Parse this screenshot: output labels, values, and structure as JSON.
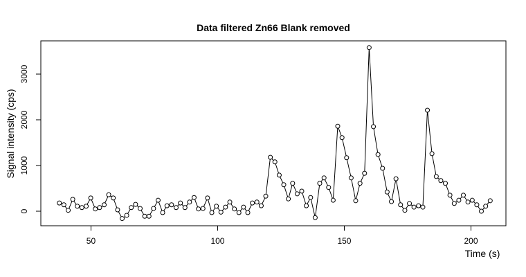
{
  "chart_data": {
    "type": "line",
    "title": "Data filtered Zn66 Blank removed",
    "xlabel": "Time (s)",
    "ylabel": "Signal intensity (cps)",
    "x": [
      37.5,
      39.3,
      41.0,
      42.8,
      44.6,
      46.4,
      48.1,
      49.9,
      51.7,
      53.4,
      55.2,
      57.0,
      58.8,
      60.5,
      62.3,
      64.1,
      65.9,
      67.6,
      69.4,
      71.2,
      72.9,
      74.7,
      76.5,
      78.3,
      80.0,
      81.8,
      83.6,
      85.3,
      87.1,
      88.9,
      90.7,
      92.4,
      94.2,
      96.0,
      97.7,
      99.5,
      101.3,
      103.1,
      104.8,
      106.6,
      108.4,
      110.2,
      111.9,
      113.7,
      115.5,
      117.2,
      119.0,
      120.8,
      122.6,
      124.3,
      126.1,
      127.9,
      129.6,
      131.4,
      133.2,
      135.0,
      136.7,
      138.5,
      140.3,
      142.0,
      143.8,
      145.6,
      147.4,
      149.1,
      150.9,
      152.7,
      154.5,
      156.2,
      158.0,
      159.8,
      161.5,
      163.3,
      165.1,
      166.9,
      168.6,
      170.4,
      172.2,
      173.9,
      175.7,
      177.5,
      179.3,
      181.0,
      182.8,
      184.6,
      186.3,
      188.1,
      189.9,
      191.7,
      193.4,
      195.2,
      197.0,
      198.8,
      200.5,
      202.3,
      204.1,
      205.8,
      207.6
    ],
    "series": [
      {
        "color": "#000000",
        "values": [
          180,
          140,
          20,
          260,
          110,
          80,
          110,
          290,
          50,
          80,
          140,
          360,
          290,
          30,
          -160,
          -90,
          80,
          150,
          60,
          -110,
          -110,
          60,
          240,
          -30,
          120,
          140,
          80,
          180,
          80,
          200,
          300,
          50,
          60,
          290,
          -30,
          110,
          -20,
          90,
          200,
          50,
          -30,
          90,
          -30,
          180,
          200,
          120,
          330,
          1180,
          1080,
          790,
          580,
          270,
          610,
          380,
          440,
          120,
          300,
          -140,
          610,
          730,
          520,
          240,
          1860,
          1610,
          1170,
          730,
          230,
          610,
          830,
          3580,
          1850,
          1240,
          940,
          420,
          210,
          710,
          140,
          20,
          170,
          90,
          120,
          90,
          2210,
          1260,
          760,
          670,
          610,
          350,
          170,
          240,
          350,
          200,
          240,
          140,
          0,
          110,
          230
        ]
      }
    ],
    "xlim": [
      30.2,
      213.8
    ],
    "ylim": [
      -318,
      3727
    ],
    "xticks": [
      50,
      100,
      150,
      200
    ],
    "yticks": [
      0,
      1000,
      2000,
      3000
    ]
  }
}
